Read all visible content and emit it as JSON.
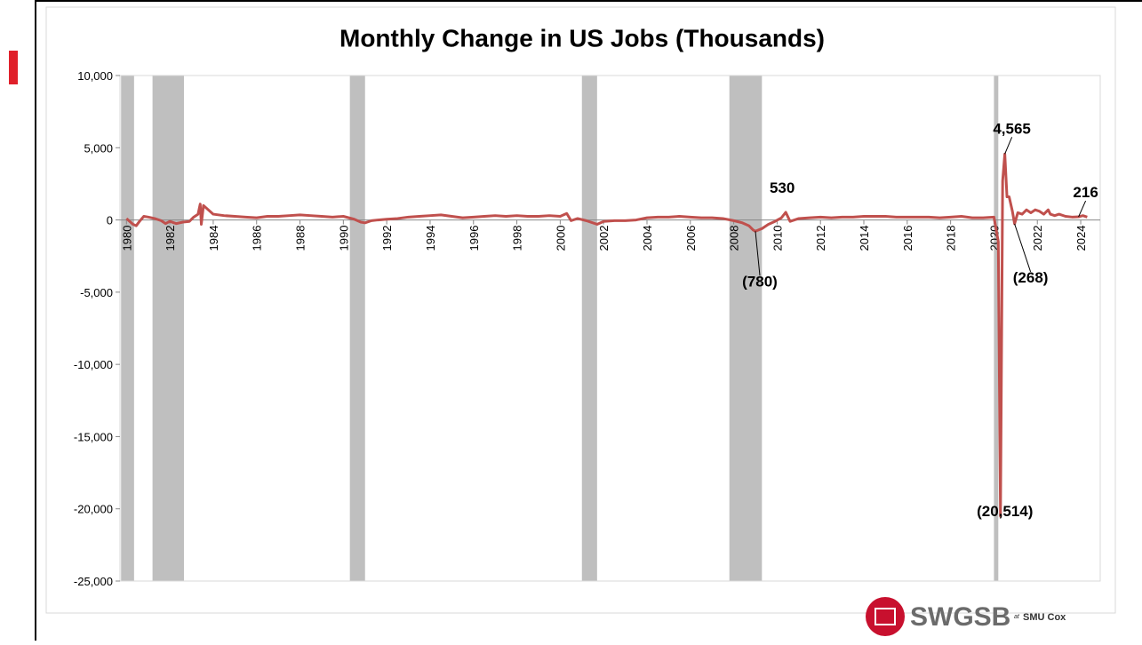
{
  "chart_data": {
    "type": "line",
    "title": "Monthly Change in US Jobs (Thousands)",
    "xlim": [
      1979.7,
      2024.9
    ],
    "xticks": [
      1980,
      1982,
      1984,
      1986,
      1988,
      1990,
      1992,
      1994,
      1996,
      1998,
      2000,
      2002,
      2004,
      2006,
      2008,
      2010,
      2012,
      2014,
      2016,
      2018,
      2020,
      2022,
      2024
    ],
    "ylim": [
      -25000,
      10000
    ],
    "yticks": [
      {
        "value": -25000,
        "label": "-25,000"
      },
      {
        "value": -20000,
        "label": "-20,000"
      },
      {
        "value": -15000,
        "label": "-15,000"
      },
      {
        "value": -10000,
        "label": "-10,000"
      },
      {
        "value": -5000,
        "label": "-5,000"
      },
      0,
      {
        "value": 5000,
        "label": "5,000"
      },
      {
        "value": 10000,
        "label": "10,000"
      }
    ],
    "recessions": [
      [
        1979.75,
        1980.35
      ],
      [
        1981.2,
        1982.65
      ],
      [
        1990.3,
        1991.0
      ],
      [
        2001.0,
        2001.7
      ],
      [
        2007.8,
        2009.3
      ],
      [
        2020.0,
        2020.2
      ]
    ],
    "recession_color": "#bfbfbf",
    "x": [
      1980.0,
      1980.3,
      1980.45,
      1980.6,
      1980.8,
      1981.0,
      1981.3,
      1981.6,
      1981.8,
      1982.0,
      1982.3,
      1982.6,
      1982.9,
      1983.1,
      1983.3,
      1983.4,
      1983.45,
      1983.55,
      1984.0,
      1984.5,
      1985.0,
      1985.5,
      1986.0,
      1986.5,
      1987.0,
      1987.5,
      1988.0,
      1988.5,
      1989.0,
      1989.5,
      1990.0,
      1990.5,
      1990.8,
      1991.0,
      1991.3,
      1991.6,
      1992.0,
      1992.5,
      1993.0,
      1993.5,
      1994.0,
      1994.5,
      1995.0,
      1995.5,
      1996.0,
      1996.5,
      1997.0,
      1997.5,
      1998.0,
      1998.5,
      1999.0,
      1999.5,
      2000.0,
      2000.3,
      2000.5,
      2000.8,
      2001.2,
      2001.7,
      2002.0,
      2002.5,
      2003.0,
      2003.5,
      2004.0,
      2004.5,
      2005.0,
      2005.5,
      2006.0,
      2006.5,
      2007.0,
      2007.5,
      2008.0,
      2008.4,
      2008.7,
      2008.9,
      2009.0,
      2009.3,
      2009.6,
      2009.9,
      2010.2,
      2010.4,
      2010.6,
      2011.0,
      2011.5,
      2012.0,
      2012.5,
      2013.0,
      2013.5,
      2014.0,
      2014.5,
      2015.0,
      2015.5,
      2016.0,
      2016.5,
      2017.0,
      2017.5,
      2018.0,
      2018.5,
      2019.0,
      2019.5,
      2020.0,
      2020.2,
      2020.3,
      2020.4,
      2020.5,
      2020.6,
      2020.7,
      2020.85,
      2020.95,
      2021.1,
      2021.3,
      2021.5,
      2021.7,
      2021.9,
      2022.1,
      2022.3,
      2022.5,
      2022.6,
      2022.8,
      2023.0,
      2023.3,
      2023.6,
      2023.9,
      2024.1,
      2024.3
    ],
    "series": [
      {
        "name": "Monthly change",
        "color": "#c0504d",
        "values": [
          100,
          -300,
          -400,
          -100,
          250,
          200,
          100,
          -50,
          -250,
          -100,
          -250,
          -150,
          -100,
          200,
          400,
          1100,
          -300,
          1000,
          400,
          300,
          250,
          200,
          150,
          250,
          250,
          300,
          350,
          300,
          250,
          200,
          250,
          50,
          -150,
          -200,
          -50,
          0,
          50,
          100,
          200,
          250,
          300,
          350,
          250,
          150,
          200,
          250,
          300,
          250,
          300,
          250,
          250,
          300,
          250,
          450,
          -50,
          100,
          -50,
          -300,
          -100,
          -50,
          -50,
          0,
          150,
          200,
          200,
          250,
          200,
          150,
          150,
          100,
          -50,
          -200,
          -400,
          -700,
          -780,
          -600,
          -300,
          -100,
          150,
          530,
          -100,
          100,
          150,
          200,
          150,
          200,
          200,
          250,
          250,
          250,
          200,
          200,
          200,
          200,
          150,
          200,
          250,
          150,
          150,
          200,
          -1500,
          -20514,
          2700,
          4565,
          1600,
          1600,
          600,
          -268,
          500,
          400,
          700,
          500,
          700,
          600,
          400,
          700,
          400,
          300,
          400,
          250,
          200,
          216,
          300,
          200
        ]
      }
    ],
    "annotations": [
      {
        "x": 2010.4,
        "value": 530,
        "value_label": "530"
      },
      {
        "x": 2009.0,
        "value": -780,
        "value_label": "(780)"
      },
      {
        "x": 2020.5,
        "value": 4565,
        "value_label": "4,565"
      },
      {
        "x": 2020.3,
        "value": -20514,
        "value_label": "(20,514)"
      },
      {
        "x": 2020.95,
        "value": -268,
        "value_label": "(268)"
      },
      {
        "x": 2023.9,
        "value": 216,
        "value_label": "216"
      }
    ],
    "logo": {
      "name": "SWGSB",
      "at": "at",
      "school": "SMU Cox"
    }
  }
}
